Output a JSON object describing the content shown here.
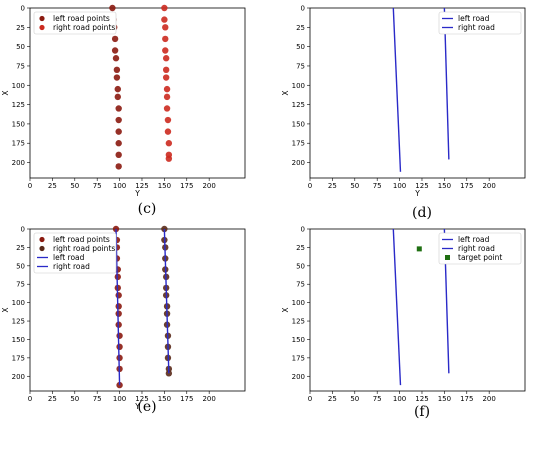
{
  "chart_data": [
    {
      "caption": "(c)",
      "type": "scatter",
      "xlabel": "Y",
      "ylabel": "X",
      "xlim": [
        0,
        240
      ],
      "ylim": [
        220,
        0
      ],
      "xticks": [
        0,
        25,
        50,
        75,
        100,
        125,
        150,
        175,
        200
      ],
      "yticks": [
        0,
        25,
        50,
        75,
        100,
        125,
        150,
        175,
        200
      ],
      "legend_position": "top-left",
      "series": [
        {
          "name": "left road points",
          "kind": "points",
          "color": "#8b1a10",
          "x": [
            92,
            93,
            94,
            95,
            95,
            96,
            97,
            97,
            98,
            98,
            99,
            99,
            99,
            99,
            99,
            99
          ],
          "y": [
            0,
            15,
            25,
            40,
            55,
            65,
            80,
            90,
            105,
            115,
            130,
            145,
            160,
            175,
            190,
            205
          ]
        },
        {
          "name": "right road points",
          "kind": "points",
          "color": "#cc2a1f",
          "x": [
            150,
            150,
            151,
            151,
            151,
            152,
            152,
            152,
            153,
            153,
            153,
            154,
            154,
            155,
            155,
            155
          ],
          "y": [
            0,
            15,
            25,
            40,
            55,
            65,
            80,
            90,
            105,
            115,
            130,
            145,
            160,
            175,
            190,
            195
          ]
        }
      ]
    },
    {
      "caption": "(d)",
      "type": "line",
      "xlabel": "Y",
      "ylabel": "X",
      "xlim": [
        0,
        240
      ],
      "ylim": [
        220,
        0
      ],
      "xticks": [
        0,
        25,
        50,
        75,
        100,
        125,
        150,
        175,
        200
      ],
      "yticks": [
        0,
        25,
        50,
        75,
        100,
        125,
        150,
        175,
        200
      ],
      "legend_position": "top-right",
      "series": [
        {
          "name": "left road",
          "kind": "line",
          "color": "#2a2ac8",
          "x": [
            93,
            101
          ],
          "y": [
            0,
            212
          ]
        },
        {
          "name": "right road",
          "kind": "line",
          "color": "#2a2ac8",
          "x": [
            150,
            155
          ],
          "y": [
            0,
            196
          ]
        }
      ]
    },
    {
      "caption": "(e)",
      "type": "scatter",
      "xlabel": "Y",
      "ylabel": "X",
      "xlim": [
        0,
        240
      ],
      "ylim": [
        220,
        0
      ],
      "xticks": [
        0,
        25,
        50,
        75,
        100,
        125,
        150,
        175,
        200
      ],
      "yticks": [
        0,
        25,
        50,
        75,
        100,
        125,
        150,
        175,
        200
      ],
      "legend_position": "top-left",
      "series": [
        {
          "name": "left road points",
          "kind": "points",
          "color": "#8b1a10",
          "x": [
            96,
            97,
            97,
            97,
            98,
            98,
            98,
            99,
            99,
            99,
            99,
            100,
            100,
            100,
            100,
            100
          ],
          "y": [
            0,
            15,
            25,
            40,
            55,
            65,
            80,
            90,
            105,
            115,
            130,
            145,
            160,
            175,
            190,
            212
          ]
        },
        {
          "name": "right road points",
          "kind": "points",
          "color": "#5a2a1a",
          "x": [
            150,
            150,
            151,
            151,
            151,
            152,
            152,
            152,
            153,
            153,
            153,
            154,
            154,
            154,
            155,
            155
          ],
          "y": [
            0,
            15,
            25,
            40,
            55,
            65,
            80,
            90,
            105,
            115,
            130,
            145,
            160,
            175,
            190,
            196
          ]
        },
        {
          "name": "left road",
          "kind": "line",
          "color": "#2a2ac8",
          "x": [
            96,
            100
          ],
          "y": [
            0,
            212
          ]
        },
        {
          "name": "right road",
          "kind": "line",
          "color": "#2a2ac8",
          "x": [
            150,
            155
          ],
          "y": [
            0,
            196
          ]
        }
      ]
    },
    {
      "caption": "(f)",
      "type": "line",
      "xlabel": "",
      "ylabel": "X",
      "xlim": [
        0,
        240
      ],
      "ylim": [
        220,
        0
      ],
      "xticks": [
        0,
        25,
        50,
        75,
        100,
        125,
        150,
        175,
        200
      ],
      "yticks": [
        0,
        25,
        50,
        75,
        100,
        125,
        150,
        175,
        200
      ],
      "legend_position": "top-right",
      "series": [
        {
          "name": "left road",
          "kind": "line",
          "color": "#2a2ac8",
          "x": [
            93,
            101
          ],
          "y": [
            0,
            212
          ]
        },
        {
          "name": "right road",
          "kind": "line",
          "color": "#2a2ac8",
          "x": [
            150,
            155
          ],
          "y": [
            0,
            196
          ]
        },
        {
          "name": "target point",
          "kind": "marker",
          "color": "#1f6f12",
          "x": [
            122
          ],
          "y": [
            27
          ]
        }
      ]
    }
  ]
}
